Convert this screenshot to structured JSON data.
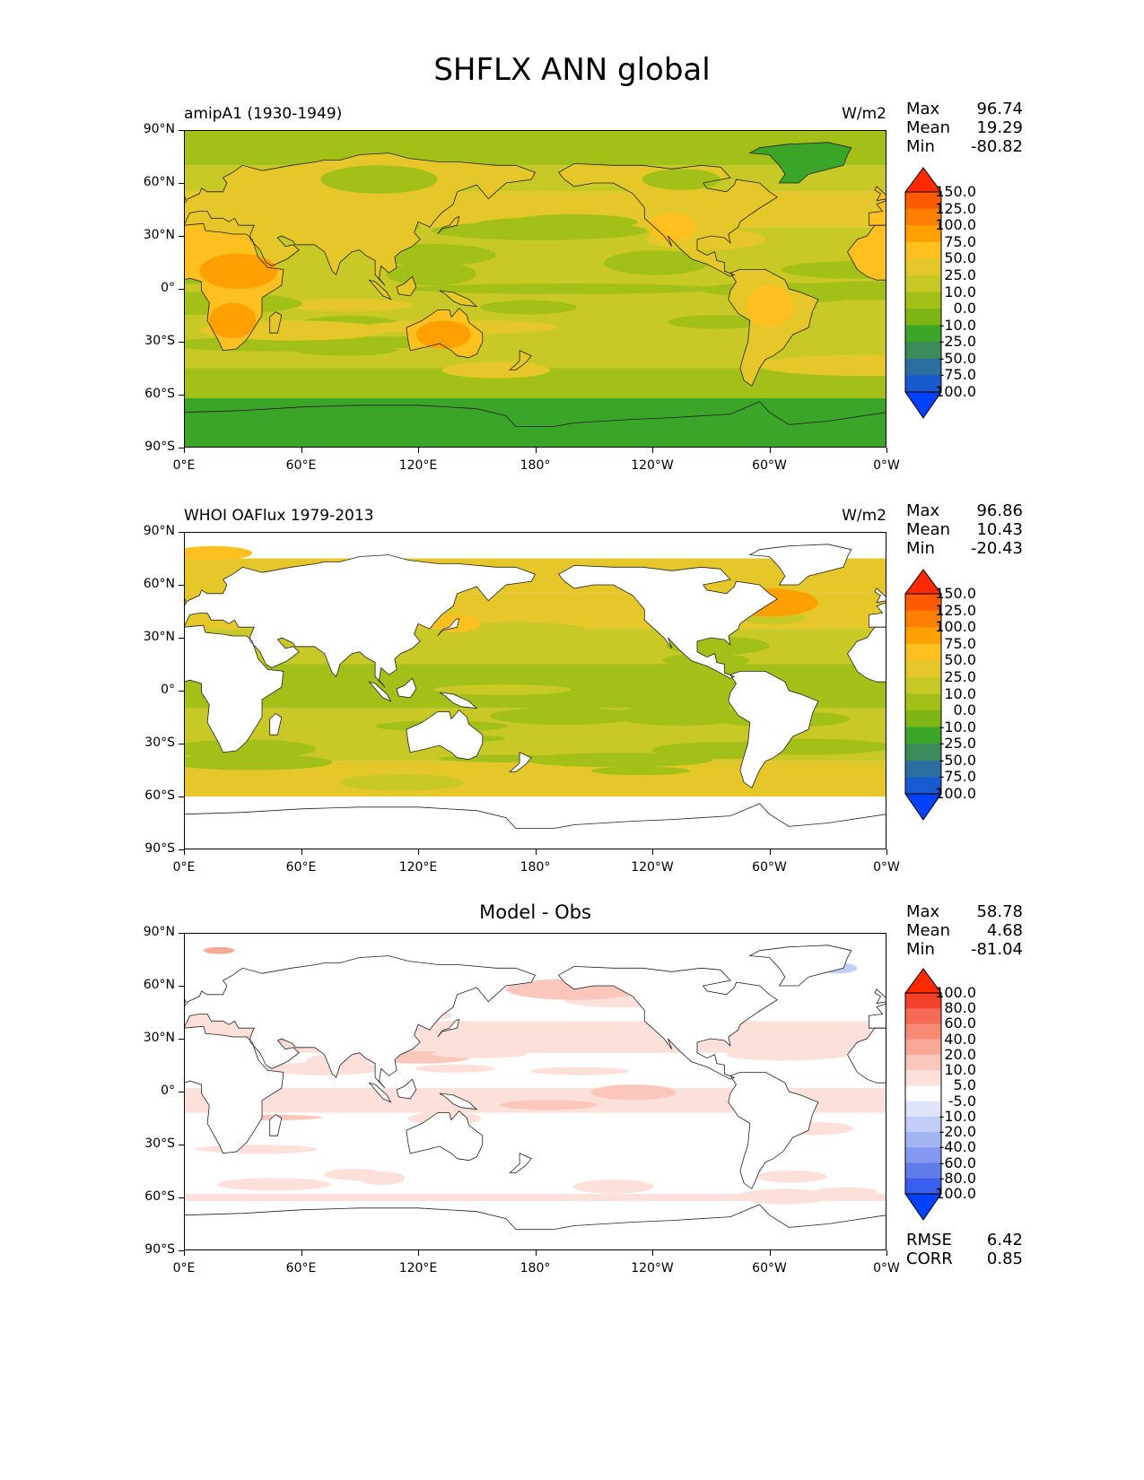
{
  "figure_title": "SHFLX ANN global",
  "chart_data": [
    {
      "type": "heatmap",
      "id": "model",
      "title_left": "amipA1 (1930-1949)",
      "title_right": "W/m2",
      "stats": [
        {
          "label": "Max",
          "value": "96.74"
        },
        {
          "label": "Mean",
          "value": "19.29"
        },
        {
          "label": "Min",
          "value": "-80.82"
        }
      ],
      "xticks": [
        "0°E",
        "60°E",
        "120°E",
        "180°",
        "120°W",
        "60°W",
        "0°W"
      ],
      "yticks": [
        "90°N",
        "60°N",
        "30°N",
        "0°",
        "30°S",
        "60°S",
        "90°S"
      ],
      "xlim": [
        0,
        360
      ],
      "ylim": [
        -90,
        90
      ],
      "colorbar": {
        "levels": [
          "150.0",
          "125.0",
          "100.0",
          "75.0",
          "50.0",
          "25.0",
          "10.0",
          "0.0",
          "-10.0",
          "-25.0",
          "-50.0",
          "-75.0",
          "-100.0"
        ],
        "colors": [
          "#ff2a00",
          "#ff5a00",
          "#ff7f00",
          "#ffa000",
          "#ffc020",
          "#e6c72a",
          "#c8c826",
          "#a2c018",
          "#7db514",
          "#3aa528",
          "#3a8a5a",
          "#2a6fa0",
          "#1a5ad0",
          "#0040ff"
        ]
      }
    },
    {
      "type": "heatmap",
      "id": "obs",
      "title_left": "WHOI OAFlux 1979-2013",
      "title_right": "W/m2",
      "stats": [
        {
          "label": "Max",
          "value": "96.86"
        },
        {
          "label": "Mean",
          "value": "10.43"
        },
        {
          "label": "Min",
          "value": "-20.43"
        }
      ],
      "xticks": [
        "0°E",
        "60°E",
        "120°E",
        "180°",
        "120°W",
        "60°W",
        "0°W"
      ],
      "yticks": [
        "90°N",
        "60°N",
        "30°N",
        "0°",
        "30°S",
        "60°S",
        "90°S"
      ],
      "xlim": [
        0,
        360
      ],
      "ylim": [
        -90,
        90
      ],
      "colorbar": {
        "levels": [
          "150.0",
          "125.0",
          "100.0",
          "75.0",
          "50.0",
          "25.0",
          "10.0",
          "0.0",
          "-10.0",
          "-25.0",
          "-50.0",
          "-75.0",
          "-100.0"
        ],
        "colors": [
          "#ff2a00",
          "#ff5a00",
          "#ff7f00",
          "#ffa000",
          "#ffc020",
          "#e6c72a",
          "#c8c826",
          "#a2c018",
          "#7db514",
          "#3aa528",
          "#3a8a5a",
          "#2a6fa0",
          "#1a5ad0",
          "#0040ff"
        ]
      }
    },
    {
      "type": "heatmap",
      "id": "diff",
      "title_center": "Model - Obs",
      "stats": [
        {
          "label": "Max",
          "value": "58.78"
        },
        {
          "label": "Mean",
          "value": "4.68"
        },
        {
          "label": "Min",
          "value": "-81.04"
        }
      ],
      "extra_stats": [
        {
          "label": "RMSE",
          "value": "6.42"
        },
        {
          "label": "CORR",
          "value": "0.85"
        }
      ],
      "xticks": [
        "0°E",
        "60°E",
        "120°E",
        "180°",
        "120°W",
        "60°W",
        "0°W"
      ],
      "yticks": [
        "90°N",
        "60°N",
        "30°N",
        "0°",
        "30°S",
        "60°S",
        "90°S"
      ],
      "xlim": [
        0,
        360
      ],
      "ylim": [
        -90,
        90
      ],
      "colorbar": {
        "levels": [
          "100.0",
          "80.0",
          "60.0",
          "40.0",
          "20.0",
          "10.0",
          "5.0",
          "-5.0",
          "-10.0",
          "-20.0",
          "-40.0",
          "-60.0",
          "-80.0",
          "-100.0"
        ],
        "colors": [
          "#ff2a00",
          "#f2402a",
          "#f46a55",
          "#f78a75",
          "#f9a898",
          "#fbc6bb",
          "#fde0da",
          "#ffffff",
          "#dfe4fb",
          "#c2cdf7",
          "#a3b4f2",
          "#8398ee",
          "#5f7ce8",
          "#3a5ef0",
          "#0040ff"
        ]
      }
    }
  ]
}
